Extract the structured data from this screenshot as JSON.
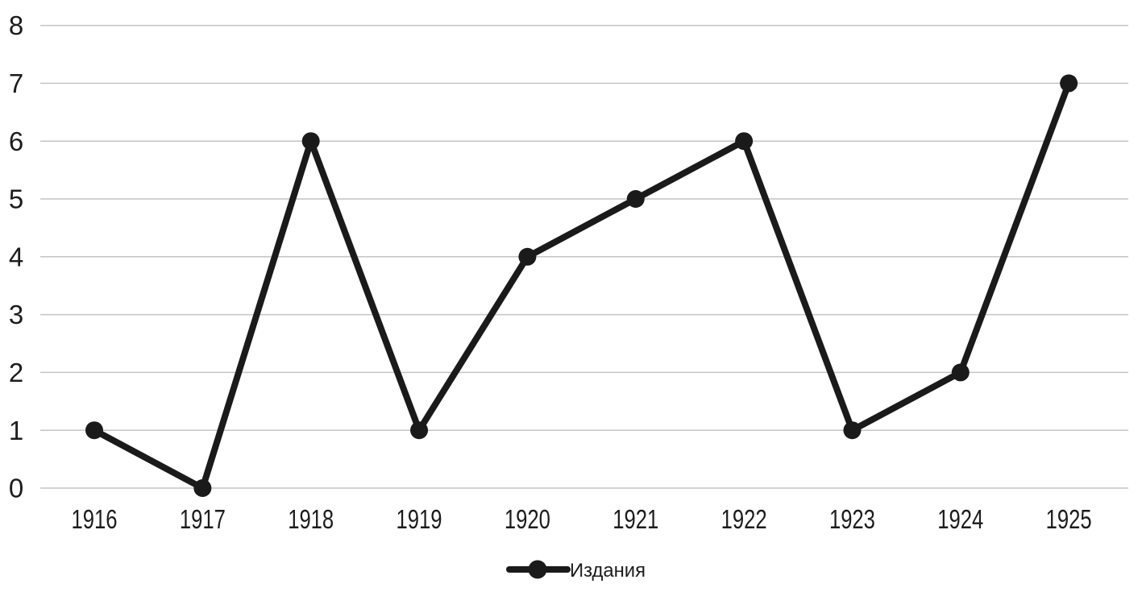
{
  "chart_data": {
    "type": "line",
    "categories": [
      "1916",
      "1917",
      "1918",
      "1919",
      "1920",
      "1921",
      "1922",
      "1923",
      "1924",
      "1925"
    ],
    "series": [
      {
        "name": "Издания",
        "values": [
          1,
          0,
          6,
          1,
          4,
          5,
          6,
          1,
          2,
          7
        ]
      }
    ],
    "title": "",
    "xlabel": "",
    "ylabel": "",
    "ylim": [
      0,
      8
    ],
    "ytick_step": 1,
    "yticks": [
      0,
      1,
      2,
      3,
      4,
      5,
      6,
      7,
      8
    ],
    "grid": "horizontal",
    "legend_position": "bottom",
    "marker": "circle",
    "colors": {
      "series": "#1a1a1a",
      "gridline": "#c4c4c4",
      "tick_label": "#1c1c1c",
      "background": "#ffffff"
    }
  }
}
